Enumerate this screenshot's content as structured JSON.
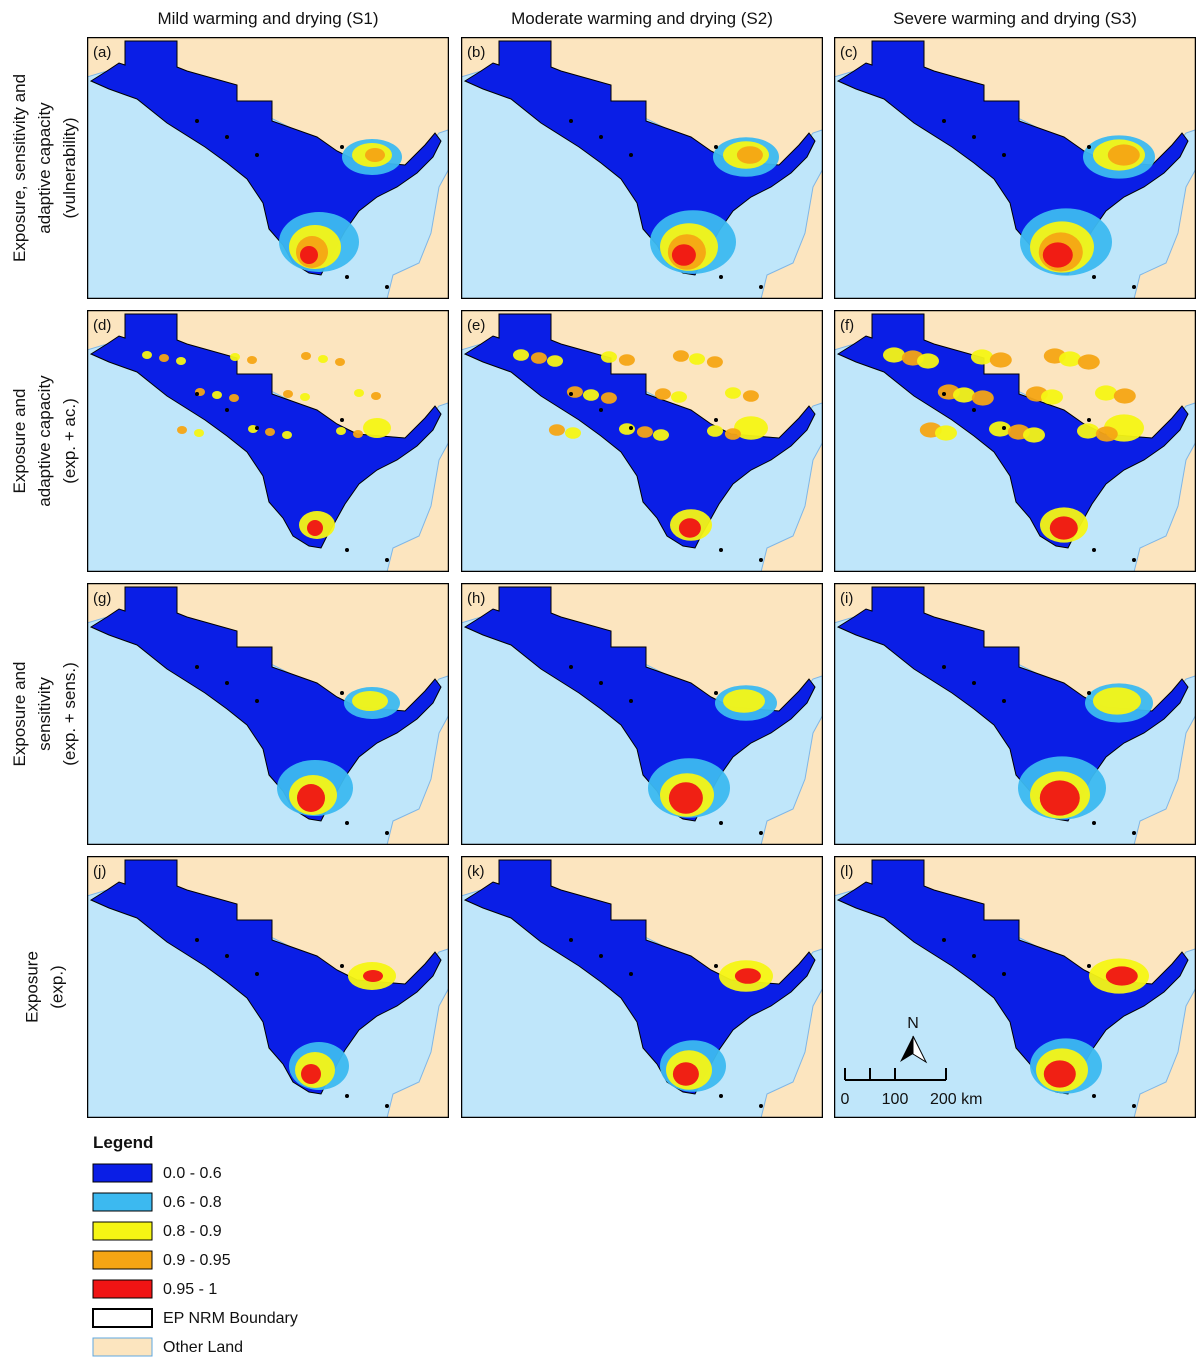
{
  "columns": [
    "Mild warming and drying (S1)",
    "Moderate warming and drying (S2)",
    "Severe warming and drying (S3)"
  ],
  "rows": [
    {
      "lines": [
        "Exposure, sensitivity and",
        "adaptive capacity",
        "(vulnerability)"
      ]
    },
    {
      "lines": [
        "Exposure and",
        "adaptive capacity",
        "(exp. + ac.)"
      ]
    },
    {
      "lines": [
        "Exposure and",
        "sensitivity",
        "(exp. + sens.)"
      ]
    },
    {
      "lines": [
        "Exposure",
        "(exp.)"
      ]
    }
  ],
  "panels": [
    "(a)",
    "(b)",
    "(c)",
    "(d)",
    "(e)",
    "(f)",
    "(g)",
    "(h)",
    "(i)",
    "(j)",
    "(k)",
    "(l)"
  ],
  "legend": {
    "title": "Legend",
    "items": [
      {
        "label": "0.0 - 0.6",
        "color": "#0a1ee6"
      },
      {
        "label": "0.6 - 0.8",
        "color": "#3cb9f0"
      },
      {
        "label": "0.8 - 0.9",
        "color": "#f5f514"
      },
      {
        "label": "0.9 - 0.95",
        "color": "#f5a514"
      },
      {
        "label": "0.95 - 1",
        "color": "#f01414"
      },
      {
        "label": "EP NRM Boundary",
        "color": "#ffffff"
      },
      {
        "label": "Other Land",
        "color": "#fce5bf"
      }
    ]
  },
  "scale_bar": {
    "north": "N",
    "labels": [
      "0",
      "100",
      "200 km"
    ]
  }
}
